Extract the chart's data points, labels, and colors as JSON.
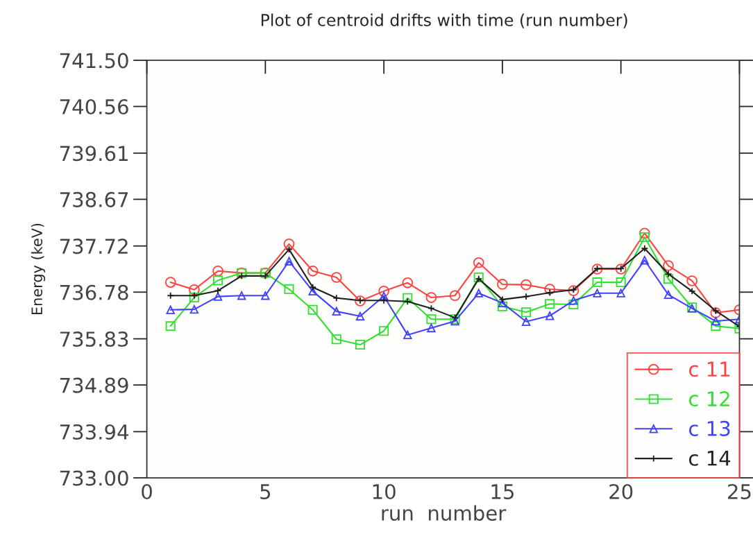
{
  "chart_data": {
    "type": "line",
    "title": "Plot of centroid drifts with time (run number)",
    "xlabel": "run  number",
    "ylabel": "Energy (keV)",
    "x": [
      1,
      2,
      3,
      4,
      5,
      6,
      7,
      8,
      9,
      10,
      11,
      12,
      13,
      14,
      15,
      16,
      17,
      18,
      19,
      20,
      21,
      22,
      23,
      24,
      25
    ],
    "series": [
      {
        "name": "c 11",
        "color": "#ff4040",
        "marker": "circle",
        "values": [
          736.98,
          736.83,
          737.21,
          737.17,
          737.17,
          737.76,
          737.21,
          737.08,
          736.6,
          736.8,
          736.97,
          736.67,
          736.71,
          737.38,
          736.94,
          736.93,
          736.84,
          736.81,
          737.25,
          737.25,
          737.98,
          737.32,
          737.01,
          736.36,
          736.42
        ]
      },
      {
        "name": "c 12",
        "color": "#30e030",
        "marker": "square",
        "values": [
          736.09,
          736.67,
          737.02,
          737.17,
          737.17,
          736.84,
          736.42,
          735.82,
          735.71,
          735.99,
          736.66,
          736.23,
          736.23,
          737.08,
          736.49,
          736.37,
          736.54,
          736.53,
          736.98,
          736.98,
          737.9,
          737.05,
          736.47,
          736.09,
          736.04
        ]
      },
      {
        "name": "c 13",
        "color": "#4040ff",
        "marker": "triangle",
        "values": [
          736.42,
          736.43,
          736.69,
          736.71,
          736.71,
          737.41,
          736.8,
          736.39,
          736.29,
          736.7,
          735.91,
          736.05,
          736.19,
          736.76,
          736.56,
          736.18,
          736.3,
          736.61,
          736.76,
          736.76,
          737.43,
          736.73,
          736.45,
          736.19,
          736.23
        ]
      },
      {
        "name": "c 14",
        "color": "#202020",
        "marker": "cross",
        "values": [
          736.71,
          736.71,
          736.81,
          737.11,
          737.11,
          737.65,
          736.88,
          736.66,
          736.61,
          736.61,
          736.59,
          736.45,
          736.26,
          737.05,
          736.63,
          736.69,
          736.77,
          736.83,
          737.26,
          737.26,
          737.67,
          737.15,
          736.8,
          736.4,
          736.08
        ]
      }
    ],
    "xlim": [
      0,
      25
    ],
    "xticks": [
      0,
      5,
      10,
      15,
      20,
      25
    ],
    "ylim": [
      733.0,
      741.5
    ],
    "yticks": [
      {
        "value": 733.0,
        "label": "733.00"
      },
      {
        "value": 733.94,
        "label": "733.94"
      },
      {
        "value": 734.89,
        "label": "734.89"
      },
      {
        "value": 735.83,
        "label": "735.83"
      },
      {
        "value": 736.78,
        "label": "736.78"
      },
      {
        "value": 737.72,
        "label": "737.72"
      },
      {
        "value": 738.67,
        "label": "738.67"
      },
      {
        "value": 739.61,
        "label": "739.61"
      },
      {
        "value": 740.56,
        "label": "740.56"
      },
      {
        "value": 741.5,
        "label": "741.50"
      }
    ],
    "legend": "bottom right",
    "grid": false
  }
}
